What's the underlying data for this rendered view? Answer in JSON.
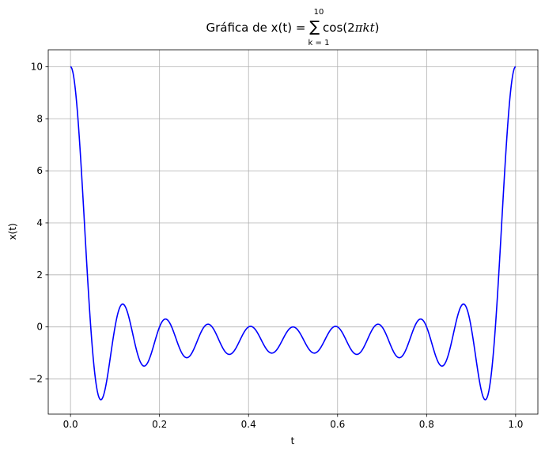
{
  "chart_data": {
    "type": "line",
    "title": {
      "prefix": "Gráfica de x(t) = ",
      "sum_symbol": "∑",
      "sum_upper": "10",
      "sum_lower": "k = 1",
      "func_open": "cos(2",
      "func_var": "πkt",
      "func_close": ")"
    },
    "xlabel": "t",
    "ylabel": "x(t)",
    "xlim": [
      -0.05,
      1.05
    ],
    "ylim": [
      -3.35,
      10.65
    ],
    "xticks": [
      0.0,
      0.2,
      0.4,
      0.6,
      0.8,
      1.0
    ],
    "xtick_labels": [
      "0.0",
      "0.2",
      "0.4",
      "0.6",
      "0.8",
      "1.0"
    ],
    "yticks": [
      -2,
      0,
      2,
      4,
      6,
      8,
      10
    ],
    "ytick_labels": [
      "−2",
      "0",
      "2",
      "4",
      "6",
      "8",
      "10"
    ],
    "grid": true,
    "color": "#0000ff",
    "series": [
      {
        "K": 10,
        "t_start": 0.0,
        "t_end": 1.0,
        "n_points": 1000
      }
    ]
  }
}
